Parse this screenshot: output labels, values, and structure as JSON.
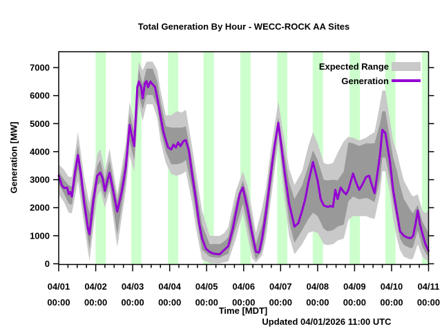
{
  "title": "Total Generation By Hour - WECC-ROCK AA Sites",
  "y_axis": {
    "label": "Generation [MW]"
  },
  "x_axis": {
    "label": "Time [MDT]"
  },
  "footer": {
    "updated": "Updated 04/01/2026 11:00 UTC"
  },
  "legend": {
    "expected_range_label": "Expected Range",
    "generation_label": "Generation"
  },
  "colors": {
    "line": "#9400d3",
    "outer_band": "#c9c9c9",
    "inner_band": "#999999",
    "night_band": "#ccffcc",
    "axis": "#000000",
    "background": "#ffffff"
  },
  "chart_data": {
    "type": "line",
    "title": "Total Generation By Hour - WECC-ROCK AA Sites",
    "xlabel": "Time [MDT]",
    "ylabel": "Generation [MW]",
    "x_unit": "hours since 04/01 00:00 MDT",
    "xlim": [
      0,
      240
    ],
    "ylim": [
      0,
      7580
    ],
    "yticks": [
      0,
      1000,
      2000,
      3000,
      4000,
      5000,
      6000,
      7000
    ],
    "xticks": [
      {
        "date": "04/01",
        "time": "00:00",
        "hour": 0
      },
      {
        "date": "04/02",
        "time": "00:00",
        "hour": 24
      },
      {
        "date": "04/03",
        "time": "00:00",
        "hour": 48
      },
      {
        "date": "04/04",
        "time": "00:00",
        "hour": 72
      },
      {
        "date": "04/05",
        "time": "00:00",
        "hour": 96
      },
      {
        "date": "04/06",
        "time": "00:00",
        "hour": 120
      },
      {
        "date": "04/07",
        "time": "00:00",
        "hour": 144
      },
      {
        "date": "04/08",
        "time": "00:00",
        "hour": 168
      },
      {
        "date": "04/09",
        "time": "00:00",
        "hour": 192
      },
      {
        "date": "04/10",
        "time": "00:00",
        "hour": 216
      },
      {
        "date": "04/11",
        "time": "00:00",
        "hour": 240
      }
    ],
    "minor_xtick_step_hours": 6,
    "night_shading_hours": [
      [
        23.9,
        30.6
      ],
      [
        47.0,
        53.7
      ],
      [
        70.9,
        77.6
      ],
      [
        94.0,
        100.7
      ],
      [
        117.9,
        124.6
      ],
      [
        141.8,
        148.4
      ],
      [
        164.9,
        171.6
      ],
      [
        188.8,
        195.5
      ],
      [
        211.9,
        218.6
      ],
      [
        235.8,
        240
      ]
    ],
    "series": [
      {
        "name": "Generation",
        "points": [
          [
            0,
            3140
          ],
          [
            2,
            2800
          ],
          [
            3.5,
            2700
          ],
          [
            5.5,
            2720
          ],
          [
            6.5,
            2480
          ],
          [
            7.5,
            2560
          ],
          [
            8.5,
            2400
          ],
          [
            10.5,
            3250
          ],
          [
            12.5,
            3880
          ],
          [
            14.5,
            3180
          ],
          [
            16.5,
            2200
          ],
          [
            19,
            1250
          ],
          [
            20,
            1050
          ],
          [
            22.5,
            2270
          ],
          [
            25,
            3140
          ],
          [
            27,
            3250
          ],
          [
            28.5,
            3050
          ],
          [
            30,
            2600
          ],
          [
            31.5,
            2950
          ],
          [
            33,
            3250
          ],
          [
            35,
            2700
          ],
          [
            38,
            1860
          ],
          [
            41,
            2600
          ],
          [
            43.5,
            3420
          ],
          [
            46,
            4950
          ],
          [
            47.5,
            4550
          ],
          [
            49,
            4200
          ],
          [
            51,
            6300
          ],
          [
            52,
            6500
          ],
          [
            53.5,
            6300
          ],
          [
            54.5,
            5900
          ],
          [
            56,
            6450
          ],
          [
            57,
            6510
          ],
          [
            58,
            6300
          ],
          [
            59.5,
            6500
          ],
          [
            61,
            6400
          ],
          [
            62.5,
            6300
          ],
          [
            64,
            5900
          ],
          [
            66,
            5280
          ],
          [
            68,
            4700
          ],
          [
            69.5,
            4410
          ],
          [
            71,
            4150
          ],
          [
            73,
            4080
          ],
          [
            74.5,
            4250
          ],
          [
            76,
            4150
          ],
          [
            77.5,
            4330
          ],
          [
            79,
            4200
          ],
          [
            81,
            4380
          ],
          [
            82.5,
            4410
          ],
          [
            84.5,
            4040
          ],
          [
            86.5,
            3220
          ],
          [
            89,
            2310
          ],
          [
            91,
            1490
          ],
          [
            93,
            910
          ],
          [
            95.5,
            540
          ],
          [
            98,
            420
          ],
          [
            100,
            370
          ],
          [
            102,
            350
          ],
          [
            104.5,
            340
          ],
          [
            107.5,
            500
          ],
          [
            110,
            625
          ],
          [
            113,
            1250
          ],
          [
            115,
            1820
          ],
          [
            117.5,
            2500
          ],
          [
            119.5,
            2720
          ],
          [
            122.5,
            1980
          ],
          [
            125.5,
            1080
          ],
          [
            128,
            430
          ],
          [
            130,
            400
          ],
          [
            132,
            900
          ],
          [
            134.5,
            1820
          ],
          [
            137.5,
            3140
          ],
          [
            140,
            4200
          ],
          [
            142.5,
            5030
          ],
          [
            144.5,
            4200
          ],
          [
            146.5,
            3300
          ],
          [
            149.5,
            2150
          ],
          [
            153,
            1325
          ],
          [
            155.5,
            1450
          ],
          [
            158,
            1900
          ],
          [
            160,
            2310
          ],
          [
            162,
            2900
          ],
          [
            165,
            3630
          ],
          [
            168,
            2970
          ],
          [
            170,
            2310
          ],
          [
            172,
            2080
          ],
          [
            174.5,
            2030
          ],
          [
            176.5,
            2060
          ],
          [
            178,
            2030
          ],
          [
            179.5,
            2640
          ],
          [
            181,
            2310
          ],
          [
            183,
            2720
          ],
          [
            185,
            2560
          ],
          [
            186.5,
            2480
          ],
          [
            188,
            2640
          ],
          [
            191,
            3220
          ],
          [
            193,
            2900
          ],
          [
            195,
            2640
          ],
          [
            197,
            2820
          ],
          [
            199.5,
            3100
          ],
          [
            201.5,
            3140
          ],
          [
            203,
            2850
          ],
          [
            205,
            2520
          ],
          [
            207,
            3300
          ],
          [
            208.5,
            3880
          ],
          [
            210,
            4780
          ],
          [
            212,
            4660
          ],
          [
            215,
            3630
          ],
          [
            217,
            2640
          ],
          [
            219.5,
            1820
          ],
          [
            221.5,
            1160
          ],
          [
            224,
            1000
          ],
          [
            226,
            940
          ],
          [
            228.5,
            910
          ],
          [
            230,
            995
          ],
          [
            231.5,
            1400
          ],
          [
            233,
            1900
          ],
          [
            234.5,
            1400
          ],
          [
            236,
            1080
          ],
          [
            238,
            700
          ],
          [
            240,
            460
          ]
        ]
      }
    ],
    "bands": {
      "name": "Expected Range",
      "outer": [
        [
          0,
          2480,
          3550
        ],
        [
          3.5,
          2200,
          3350
        ],
        [
          6.5,
          1820,
          3100
        ],
        [
          8.5,
          1800,
          3100
        ],
        [
          12.5,
          2950,
          4700
        ],
        [
          16.5,
          1400,
          3100
        ],
        [
          20,
          90,
          2150
        ],
        [
          25,
          2400,
          3900
        ],
        [
          27,
          2600,
          4100
        ],
        [
          30,
          2000,
          3300
        ],
        [
          33,
          2600,
          4100
        ],
        [
          38,
          590,
          2480
        ],
        [
          43.5,
          2600,
          4300
        ],
        [
          46,
          3880,
          5770
        ],
        [
          49,
          3300,
          5100
        ],
        [
          52,
          5690,
          7210
        ],
        [
          54.5,
          5100,
          6900
        ],
        [
          57,
          5690,
          7210
        ],
        [
          61,
          5690,
          7210
        ],
        [
          64,
          5200,
          6900
        ],
        [
          66,
          4400,
          6200
        ],
        [
          69.5,
          3600,
          5300
        ],
        [
          73,
          3200,
          5300
        ],
        [
          76.5,
          3140,
          5440
        ],
        [
          80,
          3200,
          5400
        ],
        [
          82.5,
          3300,
          5500
        ],
        [
          86.5,
          2200,
          4200
        ],
        [
          89,
          1300,
          3300
        ],
        [
          93,
          150,
          1900
        ],
        [
          98,
          30,
          1000
        ],
        [
          102,
          10,
          995
        ],
        [
          104.5,
          10,
          995
        ],
        [
          107.5,
          50,
          1100
        ],
        [
          110,
          80,
          1300
        ],
        [
          115,
          900,
          2600
        ],
        [
          119.5,
          1820,
          3300
        ],
        [
          122.5,
          1000,
          2800
        ],
        [
          125.5,
          200,
          1900
        ],
        [
          128,
          50,
          1100
        ],
        [
          132,
          300,
          2000
        ],
        [
          134.5,
          900,
          2700
        ],
        [
          137.5,
          2200,
          4000
        ],
        [
          142.5,
          4330,
          5810
        ],
        [
          146.5,
          2300,
          4400
        ],
        [
          149.5,
          1000,
          3400
        ],
        [
          153,
          340,
          2810
        ],
        [
          158,
          700,
          3300
        ],
        [
          162,
          1100,
          4200
        ],
        [
          165,
          1160,
          4700
        ],
        [
          168,
          1100,
          4300
        ],
        [
          172,
          700,
          3600
        ],
        [
          174.5,
          670,
          3550
        ],
        [
          178,
          700,
          3600
        ],
        [
          181,
          830,
          3960
        ],
        [
          185,
          900,
          4370
        ],
        [
          188,
          1570,
          4530
        ],
        [
          191,
          1700,
          4500
        ],
        [
          195,
          1700,
          4400
        ],
        [
          199.5,
          1700,
          4500
        ],
        [
          201.5,
          1650,
          4580
        ],
        [
          205,
          1600,
          4700
        ],
        [
          208.5,
          2500,
          5700
        ],
        [
          210,
          3300,
          6180
        ],
        [
          212,
          3300,
          6180
        ],
        [
          215,
          2500,
          5110
        ],
        [
          217,
          1600,
          4400
        ],
        [
          219.5,
          900,
          3960
        ],
        [
          221.5,
          500,
          3500
        ],
        [
          224,
          250,
          2970
        ],
        [
          228.5,
          150,
          2500
        ],
        [
          230,
          200,
          2400
        ],
        [
          233,
          700,
          2480
        ],
        [
          236,
          250,
          1900
        ],
        [
          238,
          150,
          1800
        ],
        [
          240,
          100,
          1900
        ]
      ],
      "inner": [
        [
          0,
          2850,
          3300
        ],
        [
          3.5,
          2500,
          3000
        ],
        [
          6.5,
          2150,
          2800
        ],
        [
          8.5,
          2100,
          2750
        ],
        [
          12.5,
          3400,
          4250
        ],
        [
          16.5,
          1800,
          2650
        ],
        [
          20,
          540,
          1780
        ],
        [
          25,
          2800,
          3500
        ],
        [
          27,
          2900,
          3700
        ],
        [
          30,
          2300,
          3000
        ],
        [
          33,
          2900,
          3700
        ],
        [
          38,
          1040,
          2230
        ],
        [
          43.5,
          3000,
          3900
        ],
        [
          46,
          4370,
          5360
        ],
        [
          49,
          3700,
          4700
        ],
        [
          52,
          6020,
          6960
        ],
        [
          54.5,
          5500,
          6400
        ],
        [
          57,
          6020,
          6960
        ],
        [
          61,
          6020,
          6960
        ],
        [
          64,
          5600,
          6500
        ],
        [
          66,
          4800,
          5800
        ],
        [
          69.5,
          4000,
          4900
        ],
        [
          73,
          3550,
          4860
        ],
        [
          76.5,
          3550,
          4860
        ],
        [
          80,
          3600,
          4860
        ],
        [
          82.5,
          3700,
          4900
        ],
        [
          86.5,
          2700,
          3700
        ],
        [
          89,
          1800,
          2800
        ],
        [
          93,
          500,
          1400
        ],
        [
          98,
          250,
          700
        ],
        [
          102,
          215,
          708
        ],
        [
          104.5,
          215,
          700
        ],
        [
          107.5,
          300,
          800
        ],
        [
          110,
          350,
          950
        ],
        [
          115,
          1300,
          2200
        ],
        [
          119.5,
          2150,
          2970
        ],
        [
          122.5,
          1400,
          2400
        ],
        [
          125.5,
          600,
          1500
        ],
        [
          128,
          150,
          700
        ],
        [
          132,
          500,
          1400
        ],
        [
          134.5,
          1300,
          2300
        ],
        [
          137.5,
          2600,
          3600
        ],
        [
          142.5,
          4700,
          5240
        ],
        [
          146.5,
          2800,
          3900
        ],
        [
          149.5,
          1500,
          2900
        ],
        [
          153,
          750,
          2310
        ],
        [
          158,
          1200,
          2800
        ],
        [
          162,
          1600,
          3500
        ],
        [
          165,
          1820,
          4040
        ],
        [
          168,
          1700,
          3700
        ],
        [
          172,
          1250,
          3000
        ],
        [
          174.5,
          1160,
          2970
        ],
        [
          178,
          1200,
          3000
        ],
        [
          181,
          1325,
          2970
        ],
        [
          185,
          1400,
          3300
        ],
        [
          188,
          2230,
          4330
        ],
        [
          191,
          2400,
          4300
        ],
        [
          195,
          2300,
          4200
        ],
        [
          199.5,
          2350,
          4300
        ],
        [
          201.5,
          2310,
          4290
        ],
        [
          205,
          2200,
          4300
        ],
        [
          208.5,
          3000,
          5000
        ],
        [
          210,
          3790,
          5440
        ],
        [
          212,
          3790,
          5440
        ],
        [
          215,
          3000,
          4450
        ],
        [
          217,
          2200,
          3800
        ],
        [
          219.5,
          1500,
          3300
        ],
        [
          221.5,
          900,
          2800
        ],
        [
          224,
          670,
          2310
        ],
        [
          228.5,
          550,
          1900
        ],
        [
          230,
          600,
          1800
        ],
        [
          233,
          1200,
          2100
        ],
        [
          236,
          600,
          1500
        ],
        [
          238,
          400,
          1300
        ],
        [
          240,
          250,
          1100
        ]
      ]
    },
    "legend_position": "top-right-inside",
    "grid": false
  }
}
